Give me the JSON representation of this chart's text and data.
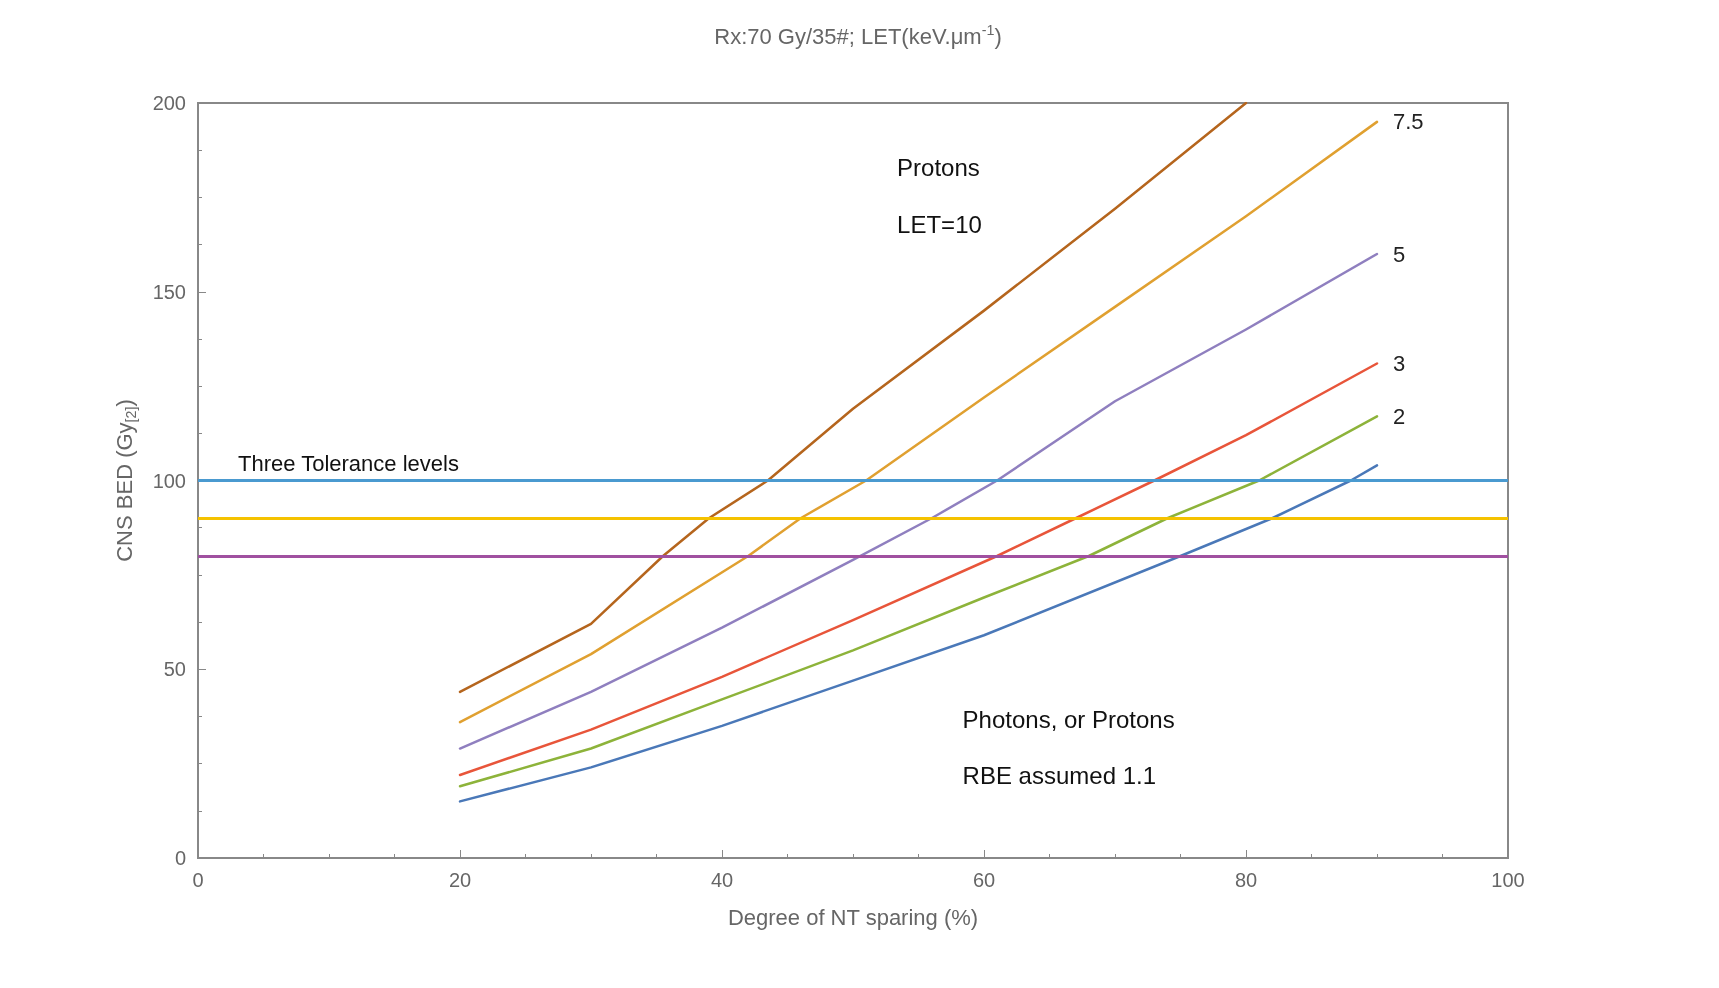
{
  "chart_data": {
    "type": "line",
    "title": "Rx:70 Gy/35#; LET(keV.μm$^{-1}$)",
    "xlabel": "Degree of NT sparing (%)",
    "ylabel": "CNS BED (Gy$_{[2]}$)",
    "xlim": [
      0,
      100
    ],
    "xticks": [
      0,
      20,
      40,
      60,
      80,
      100
    ],
    "ylim": [
      0,
      200
    ],
    "yticks": [
      0,
      50,
      100,
      150,
      200
    ],
    "grid": false,
    "legend": false,
    "marker": "none",
    "line_style": "solid",
    "series": [
      {
        "color": "#b5651d",
        "x": [
          20,
          30,
          35.5,
          39,
          43.5,
          50,
          60,
          70,
          80
        ],
        "values": [
          44,
          62,
          80,
          90,
          100,
          119,
          145,
          172,
          200
        ]
      },
      {
        "name": "7.5",
        "color": "#e0a030",
        "x": [
          20,
          30,
          42,
          46,
          51,
          60,
          70,
          80,
          90
        ],
        "values": [
          36,
          54,
          80,
          90,
          100,
          122,
          146,
          170,
          195
        ]
      },
      {
        "name": "5",
        "color": "#8f7fbf",
        "x": [
          20,
          30,
          40,
          50,
          56,
          61,
          70,
          80,
          90
        ],
        "values": [
          29,
          44,
          61,
          79,
          90,
          100,
          121,
          140,
          160
        ]
      },
      {
        "name": "3",
        "color": "#e8553a",
        "x": [
          20,
          30,
          40,
          50,
          61,
          67,
          73,
          80,
          90
        ],
        "values": [
          22,
          34,
          48,
          63,
          80,
          90,
          100,
          112,
          131
        ]
      },
      {
        "name": "2",
        "color": "#8db33a",
        "x": [
          20,
          30,
          40,
          50,
          60,
          68,
          74,
          81,
          90
        ],
        "values": [
          19,
          29,
          42,
          55,
          69,
          80,
          90,
          100,
          117
        ]
      },
      {
        "color": "#4a78b8",
        "x": [
          20,
          30,
          40,
          50,
          60,
          75,
          82,
          88,
          90
        ],
        "values": [
          15,
          24,
          35,
          47,
          59,
          80,
          90,
          100,
          104
        ]
      }
    ],
    "ref_lines": [
      {
        "axis": "y",
        "value": 100,
        "label": "Three Tolerance levels",
        "color": "#4a9ad0"
      },
      {
        "axis": "y",
        "value": 90,
        "color": "#f5c200"
      },
      {
        "axis": "y",
        "value": 80,
        "color": "#a050a0"
      }
    ],
    "annotations": [
      "Protons",
      "LET=10",
      "Photons, or Protons",
      "RBE assumed 1.1"
    ]
  }
}
